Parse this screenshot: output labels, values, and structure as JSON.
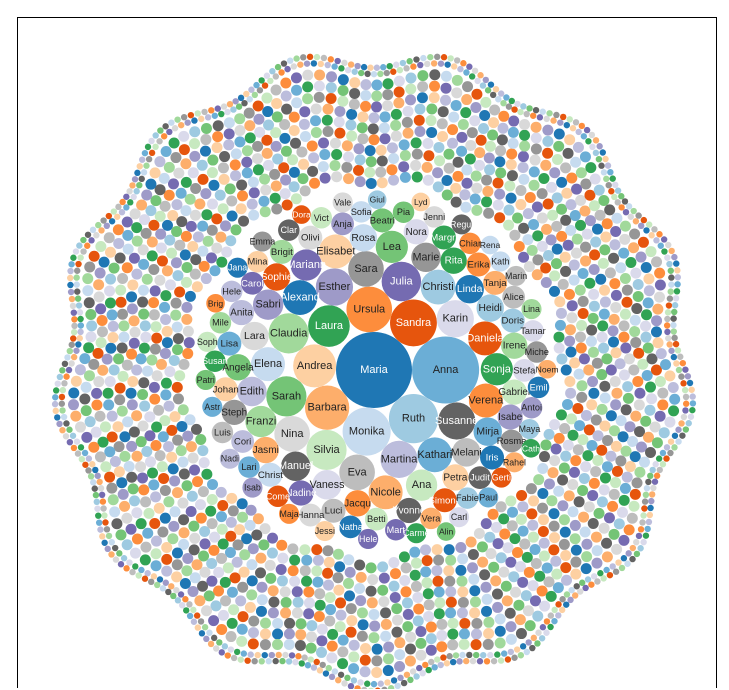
{
  "palette": [
    "#1f77b4",
    "#6baed6",
    "#9ecae1",
    "#c6dbef",
    "#e6550d",
    "#fd8d3c",
    "#fdae6b",
    "#fdd0a2",
    "#31a354",
    "#74c476",
    "#a1d99b",
    "#c7e9c0",
    "#756bb1",
    "#9e9ac8",
    "#bcbddc",
    "#dadaeb",
    "#636363",
    "#969696",
    "#bdbdbd",
    "#d9d9d9"
  ],
  "chart_data": {
    "type": "packed-bubble",
    "names": [
      "Maria",
      "Anna",
      "Ruth",
      "Monika",
      "Sandra",
      "Ursula",
      "Barbara",
      "Andrea",
      "Laura",
      "Sarah",
      "Claudia",
      "Silvia",
      "Julia",
      "Esther",
      "Martina",
      "Karin",
      "Susanne",
      "Sara",
      "Eva",
      "Nina",
      "Alexand",
      "Kathari",
      "Christi",
      "Elena",
      "Daniela",
      "Verena",
      "Nicole",
      "Elisabet",
      "Sonja",
      "Lea",
      "Franzi",
      "Ana",
      "Mariann",
      "Sabri",
      "Edith",
      "Vaness",
      "Manuel",
      "Marie",
      "Melani",
      "Lara",
      "Linda",
      "Mirja",
      "Heidi",
      "Rosa",
      "Sophie",
      "Jacqu",
      "Jasmi",
      "Petra",
      "Rita",
      "Angela",
      "Irene",
      "Gabriel",
      "Nadine",
      "Isabe",
      "Anita",
      "Nora",
      "Yvonne",
      "Steph",
      "Luci",
      "Olivi",
      "Iris",
      "Lisa",
      "Doris",
      "Christ",
      "Simone",
      "Erika",
      "Tanja",
      "Johan",
      "Margri",
      "Beatri",
      "Brigit",
      "Betti",
      "Carol",
      "Anja",
      "Cori",
      "Stefa",
      "Judit",
      "Rosma",
      "Alice",
      "Hanna",
      "Natha",
      "Lari",
      "Fabie",
      "Sofia",
      "Come",
      "Chiar",
      "Vera",
      "Mina",
      "Susan",
      "Pia",
      "Mile",
      "Vict",
      "Mart",
      "Antoi",
      "Hele",
      "Tamar",
      "Clar",
      "Miche",
      "Luis",
      "Jenni",
      "Emil",
      "Astr",
      "Maya",
      "Kath",
      "Gerti",
      "Maja",
      "Rahel",
      "Jessi",
      "Carme",
      "Patri",
      "Lina",
      "Soph",
      "Hele",
      "Isab",
      "Nadi",
      "Carl",
      "Regul",
      "Emma",
      "Marin",
      "Vale",
      "Jana",
      "Paul",
      "Giul",
      "Rena",
      "Dora",
      "Brig",
      "Noem",
      "Lyd",
      "Cath",
      "Alin"
    ],
    "values": [
      100,
      78,
      42,
      40,
      38,
      36,
      34,
      32,
      30,
      28,
      28,
      28,
      27,
      24,
      24,
      24,
      24,
      22,
      22,
      22,
      21,
      21,
      21,
      20,
      20,
      20,
      20,
      20,
      18,
      18,
      17,
      17,
      17,
      16,
      15,
      15,
      15,
      15,
      14,
      14,
      14,
      14,
      13,
      13,
      13,
      12,
      12,
      12,
      12,
      12,
      12,
      11,
      11,
      11,
      11,
      11,
      11,
      11,
      10,
      10,
      10,
      10,
      10,
      10,
      10,
      10,
      10,
      10,
      10,
      10,
      10,
      9,
      9,
      9,
      9,
      9,
      9,
      9,
      9,
      9,
      9,
      8,
      8,
      8,
      8,
      8,
      8,
      8,
      8,
      8,
      8,
      8,
      8,
      8,
      8,
      8,
      8,
      8,
      8,
      8,
      8,
      7,
      7,
      7,
      7,
      7,
      7,
      7,
      7,
      7,
      7,
      7,
      7,
      7,
      7,
      7,
      7,
      7,
      7,
      7,
      7,
      7,
      6,
      6,
      6,
      6,
      6,
      6,
      6,
      6
    ]
  }
}
